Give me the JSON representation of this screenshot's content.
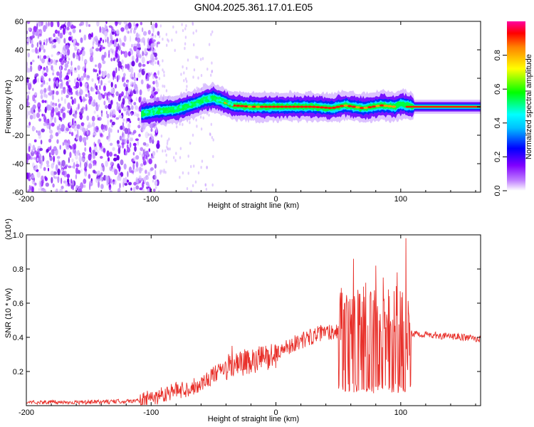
{
  "title": "GN04.2025.361.17.01.E05",
  "chart_data": [
    {
      "type": "heatmap",
      "xlabel": "Height of straight line (km)",
      "ylabel": "Frequency (Hz)",
      "xlim": [
        -200,
        164
      ],
      "ylim": [
        -60,
        60
      ],
      "xticks": [
        -200,
        -100,
        0,
        100
      ],
      "yticks": [
        -60,
        -40,
        -20,
        0,
        20,
        40,
        60
      ],
      "ridge_center": [
        [
          -108,
          -5
        ],
        [
          -95,
          -3
        ],
        [
          -80,
          -2
        ],
        [
          -65,
          2
        ],
        [
          -57,
          5
        ],
        [
          -50,
          6
        ],
        [
          -43,
          4
        ],
        [
          -35,
          1
        ],
        [
          -20,
          0
        ],
        [
          0,
          0
        ],
        [
          30,
          0
        ],
        [
          45,
          -1
        ],
        [
          55,
          1
        ],
        [
          70,
          -1
        ],
        [
          85,
          1
        ],
        [
          95,
          0
        ],
        [
          100,
          2
        ],
        [
          110,
          0
        ],
        [
          164,
          0
        ]
      ],
      "noise_region_x": [
        -200,
        -100
      ],
      "colorbar": {
        "label": "Normalized spectral amplitude",
        "range": [
          0,
          1
        ],
        "ticks": [
          0.0,
          0.2,
          0.4,
          0.6,
          0.8
        ],
        "colors": [
          "#ffffff",
          "#8000ff",
          "#0000ff",
          "#00ffff",
          "#00ff00",
          "#ffff00",
          "#ff8000",
          "#ff0000",
          "#ff00a0"
        ]
      }
    },
    {
      "type": "line",
      "xlabel": "Height of straight line (km)",
      "ylabel": "SNR (10 * v/v)",
      "multiplier": "(x10⁴)",
      "xlim": [
        -200,
        164
      ],
      "ylim": [
        0,
        1.0
      ],
      "xticks": [
        -200,
        -100,
        0,
        100
      ],
      "yticks": [
        0.2,
        0.4,
        0.6,
        0.8,
        1.0
      ],
      "series": [
        {
          "name": "SNR",
          "color": "#e8302a",
          "x": [
            -200,
            -175,
            -150,
            -125,
            -110,
            -100,
            -90,
            -80,
            -70,
            -60,
            -50,
            -40,
            -30,
            -20,
            -10,
            0,
            10,
            20,
            30,
            40,
            50,
            55,
            60,
            65,
            70,
            75,
            80,
            85,
            90,
            95,
            100,
            105,
            108,
            115,
            130,
            150,
            164
          ],
          "values": [
            0.02,
            0.02,
            0.02,
            0.025,
            0.03,
            0.04,
            0.07,
            0.09,
            0.1,
            0.13,
            0.18,
            0.22,
            0.24,
            0.25,
            0.28,
            0.3,
            0.35,
            0.38,
            0.41,
            0.43,
            0.44,
            0.45,
            0.46,
            0.44,
            0.45,
            0.43,
            0.44,
            0.45,
            0.42,
            0.43,
            0.41,
            0.4,
            0.42,
            0.42,
            0.41,
            0.4,
            0.39
          ],
          "spikes": [
            [
              -35,
              0.35
            ],
            [
              -25,
              0.33
            ],
            [
              -18,
              0.3
            ],
            [
              55,
              0.6
            ],
            [
              62,
              0.86
            ],
            [
              72,
              0.72
            ],
            [
              80,
              0.82
            ],
            [
              86,
              0.75
            ],
            [
              90,
              0.68
            ],
            [
              97,
              0.78
            ],
            [
              104,
              0.98
            ]
          ]
        }
      ]
    }
  ]
}
